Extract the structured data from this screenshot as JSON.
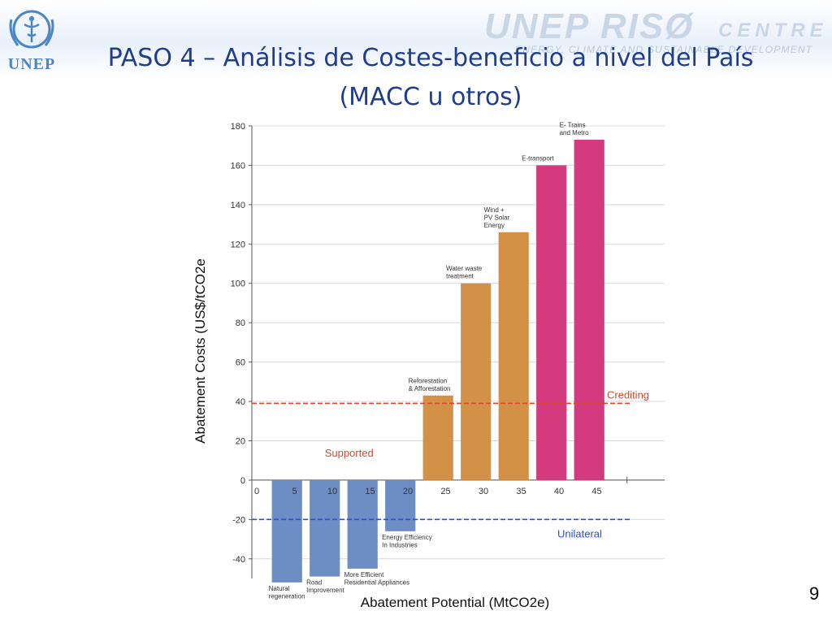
{
  "slide": {
    "title_line1": "PASO 4 – Análisis de Costes-beneficio  a nivel del País",
    "title_line2": "(MACC u otros)",
    "page_number": "9",
    "logo_text": "UNEP",
    "brand_main": "UNEP RISØ",
    "brand_centre": "CENTRE",
    "brand_tagline": "ENERGY, CLIMATE  AND  SUSTAINABLE  DEVELOPMENT"
  },
  "colors": {
    "title": "#1f3d8f",
    "negative_bar": "#6d8ec4",
    "medium_bar": "#d39147",
    "high_bar": "#d43b7e",
    "crediting_line": "#d9472b",
    "unilateral_line": "#2c4fd0"
  },
  "chart_data": {
    "type": "bar",
    "xlabel": "Abatement Potential (MtCO2e)",
    "ylabel": "Abatement Costs (US$/tCO2e",
    "ylim": [
      -50,
      180
    ],
    "yticks": [
      -40,
      -20,
      0,
      20,
      40,
      60,
      80,
      100,
      120,
      140,
      160,
      180
    ],
    "xlim": [
      0,
      50
    ],
    "xticks": [
      0,
      5,
      10,
      15,
      20,
      25,
      30,
      35,
      40,
      45
    ],
    "grid": true,
    "bars": [
      {
        "x0": 2,
        "x1": 6,
        "value": -52,
        "group": "negative",
        "label": [
          "Natural",
          "regeneration"
        ]
      },
      {
        "x0": 7,
        "x1": 11,
        "value": -49,
        "group": "negative",
        "label": [
          "Road",
          "Improvement"
        ]
      },
      {
        "x0": 12,
        "x1": 16,
        "value": -45,
        "group": "negative",
        "label": [
          "More Efficient",
          "Residential Appliances"
        ]
      },
      {
        "x0": 17,
        "x1": 21,
        "value": -26,
        "group": "negative",
        "label": [
          "Energy Efficiency",
          "In Industries"
        ]
      },
      {
        "x0": 22,
        "x1": 26,
        "value": 43,
        "group": "medium",
        "label": [
          "Reforestation",
          "& Afforestation"
        ]
      },
      {
        "x0": 27,
        "x1": 31,
        "value": 100,
        "group": "medium",
        "label": [
          "Water waste",
          "treatment"
        ]
      },
      {
        "x0": 32,
        "x1": 36,
        "value": 126,
        "group": "medium",
        "label": [
          "Wind +",
          "PV Solar",
          "Energy"
        ]
      },
      {
        "x0": 37,
        "x1": 41,
        "value": 160,
        "group": "high",
        "label": [
          "E-transport"
        ]
      },
      {
        "x0": 42,
        "x1": 46,
        "value": 173,
        "group": "high",
        "label": [
          "E- Trains",
          "and Metro"
        ]
      }
    ],
    "reference_lines": [
      {
        "name": "Crediting",
        "value": 39,
        "color": "#d9472b"
      },
      {
        "name": "Unilateral",
        "value": -20,
        "color": "#2c4fd0"
      }
    ],
    "annotations": [
      {
        "text": "Supported",
        "x": 9,
        "y": 12,
        "color": "#d9472b"
      }
    ]
  }
}
